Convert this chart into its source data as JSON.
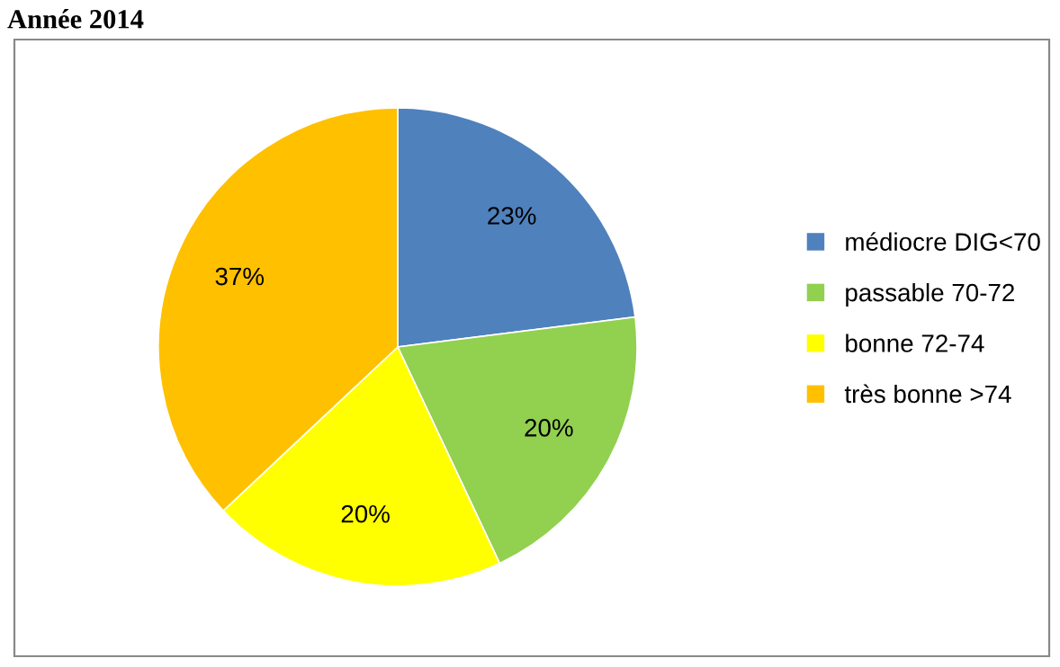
{
  "chart_data": {
    "type": "pie",
    "title": "Année 2014",
    "categories": [
      "médiocre DIG<70",
      "passable 70-72",
      "bonne 72-74",
      "très bonne >74"
    ],
    "values": [
      23,
      20,
      20,
      37
    ],
    "colors": [
      "#4f81bd",
      "#92d050",
      "#ffff00",
      "#ffc000"
    ],
    "value_labels": [
      "23%",
      "20%",
      "20%",
      "37%"
    ],
    "legend": "right"
  }
}
